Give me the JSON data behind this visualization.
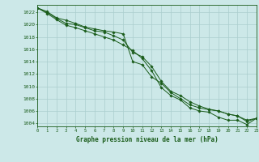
{
  "title": "Graphe pression niveau de la mer (hPa)",
  "x_hours": [
    0,
    1,
    2,
    3,
    4,
    5,
    6,
    7,
    8,
    9,
    10,
    11,
    12,
    13,
    14,
    15,
    16,
    17,
    18,
    19,
    20,
    21,
    22,
    23
  ],
  "line1": [
    1022.7,
    1022.1,
    1021.1,
    1020.7,
    1020.2,
    1019.6,
    1019.3,
    1019.0,
    1018.8,
    1018.5,
    1014.0,
    1013.5,
    1011.5,
    1010.5,
    1009.0,
    1008.0,
    1007.0,
    1006.5,
    1006.2,
    1006.0,
    1005.5,
    1005.2,
    1004.5,
    1004.8
  ],
  "line2": [
    1022.7,
    1022.0,
    1021.0,
    1020.2,
    1020.0,
    1019.5,
    1019.0,
    1018.8,
    1018.2,
    1017.5,
    1015.5,
    1014.8,
    1013.2,
    1010.8,
    1009.2,
    1008.5,
    1007.5,
    1006.8,
    1006.3,
    1006.0,
    1005.5,
    1005.2,
    1004.3,
    1004.8
  ],
  "line3": [
    1022.7,
    1021.8,
    1020.8,
    1019.9,
    1019.5,
    1019.0,
    1018.5,
    1018.0,
    1017.5,
    1016.7,
    1015.8,
    1014.5,
    1012.5,
    1009.8,
    1008.5,
    1007.8,
    1006.5,
    1006.0,
    1005.8,
    1005.0,
    1004.5,
    1004.5,
    1003.8,
    1004.8
  ],
  "line_color": "#1a5c1a",
  "bg_color": "#cce8e8",
  "grid_color": "#aacece",
  "text_color": "#1a5c1a",
  "ylim": [
    1003.5,
    1023.2
  ],
  "yticks": [
    1004,
    1006,
    1008,
    1010,
    1012,
    1014,
    1016,
    1018,
    1020,
    1022
  ],
  "xlim": [
    0,
    23
  ]
}
